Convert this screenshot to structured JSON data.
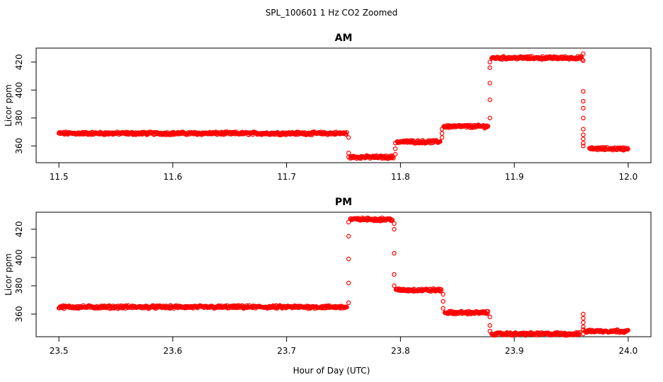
{
  "figure": {
    "title": "SPL_100601  1 Hz CO2 Zoomed",
    "xlabel": "Hour of Day (UTC)"
  },
  "colors": {
    "points": "#ff0000",
    "axes": "#000000",
    "background": "#ffffff"
  },
  "chart_data": [
    {
      "type": "scatter",
      "title": "AM",
      "ylabel": "Licor ppm",
      "xlim": [
        11.5,
        12.0
      ],
      "ylim": [
        348,
        430
      ],
      "xticks": [
        "11.5",
        "11.6",
        "11.7",
        "11.8",
        "11.9",
        "12.0"
      ],
      "yticks": [
        "360",
        "380",
        "400",
        "420"
      ],
      "grid": false,
      "segments": [
        {
          "x": [
            11.5,
            11.753
          ],
          "y": 369
        },
        {
          "x": [
            11.756,
            11.794
          ],
          "y": 352
        },
        {
          "x": [
            11.797,
            11.835
          ],
          "y": 363
        },
        {
          "x": [
            11.838,
            11.877
          ],
          "y": 374
        },
        {
          "x": [
            11.88,
            11.96
          ],
          "y": 423
        },
        {
          "x": [
            11.966,
            12.0
          ],
          "y": 358
        }
      ],
      "transitions": [
        {
          "x": 11.7545,
          "y": [
            366,
            355,
            352
          ]
        },
        {
          "x": 11.7955,
          "y": [
            354,
            358,
            362
          ]
        },
        {
          "x": 11.8365,
          "y": [
            366,
            369,
            372
          ]
        },
        {
          "x": 11.8785,
          "y": [
            380,
            393,
            405,
            416,
            420
          ]
        },
        {
          "x": 11.9605,
          "y": [
            426,
            421,
            399,
            392,
            387,
            380,
            372,
            368,
            365,
            362,
            360
          ]
        }
      ]
    },
    {
      "type": "scatter",
      "title": "PM",
      "ylabel": "Licor ppm",
      "xlim": [
        23.5,
        24.0
      ],
      "ylim": [
        344,
        432
      ],
      "xticks": [
        "23.5",
        "23.6",
        "23.7",
        "23.8",
        "23.9",
        "24.0"
      ],
      "yticks": [
        "360",
        "380",
        "400",
        "420"
      ],
      "grid": false,
      "segments": [
        {
          "x": [
            23.5,
            23.753
          ],
          "y": 365
        },
        {
          "x": [
            23.756,
            23.793
          ],
          "y": 427
        },
        {
          "x": [
            23.796,
            23.836
          ],
          "y": 377
        },
        {
          "x": [
            23.839,
            23.877
          ],
          "y": 361
        },
        {
          "x": [
            23.88,
            23.958
          ],
          "y": 346
        },
        {
          "x": [
            23.962,
            24.0
          ],
          "y": 348
        }
      ],
      "transitions": [
        {
          "x": 23.7545,
          "y": [
            368,
            382,
            399,
            415,
            425
          ]
        },
        {
          "x": 23.7945,
          "y": [
            424,
            420,
            403,
            388,
            380
          ]
        },
        {
          "x": 23.8375,
          "y": [
            374,
            369,
            364
          ]
        },
        {
          "x": 23.8785,
          "y": [
            358,
            352,
            348
          ]
        },
        {
          "x": 23.9605,
          "y": [
            346,
            360,
            357,
            354,
            351,
            349
          ]
        }
      ]
    }
  ]
}
